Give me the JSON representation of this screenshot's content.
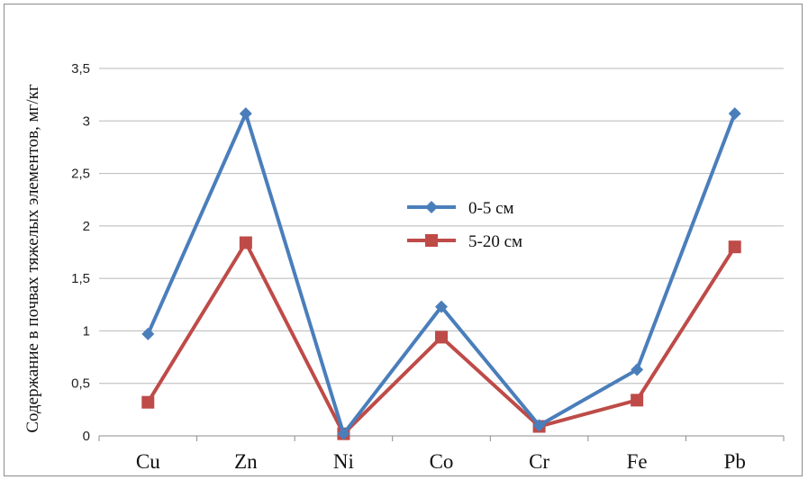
{
  "chart_data": {
    "type": "line",
    "categories": [
      "Cu",
      "Zn",
      "Ni",
      "Co",
      "Cr",
      "Fe",
      "Pb"
    ],
    "series": [
      {
        "name": "0-5 см",
        "values": [
          0.97,
          3.07,
          0.02,
          1.23,
          0.1,
          0.63,
          3.07
        ],
        "color": "#4a7ebb",
        "marker": "diamond"
      },
      {
        "name": "5-20 см",
        "values": [
          0.32,
          1.84,
          0.02,
          0.94,
          0.09,
          0.34,
          1.8
        ],
        "color": "#be4b48",
        "marker": "square"
      }
    ],
    "ylabel": "Содержание в почвах тяжелых элементов, мг/кг",
    "xlabel": "",
    "ylim": [
      0,
      3.5
    ],
    "yticks": [
      "0",
      "0,5",
      "1",
      "1,5",
      "2",
      "2,5",
      "3",
      "3,5"
    ],
    "grid": true,
    "legend_position": "center-right"
  }
}
